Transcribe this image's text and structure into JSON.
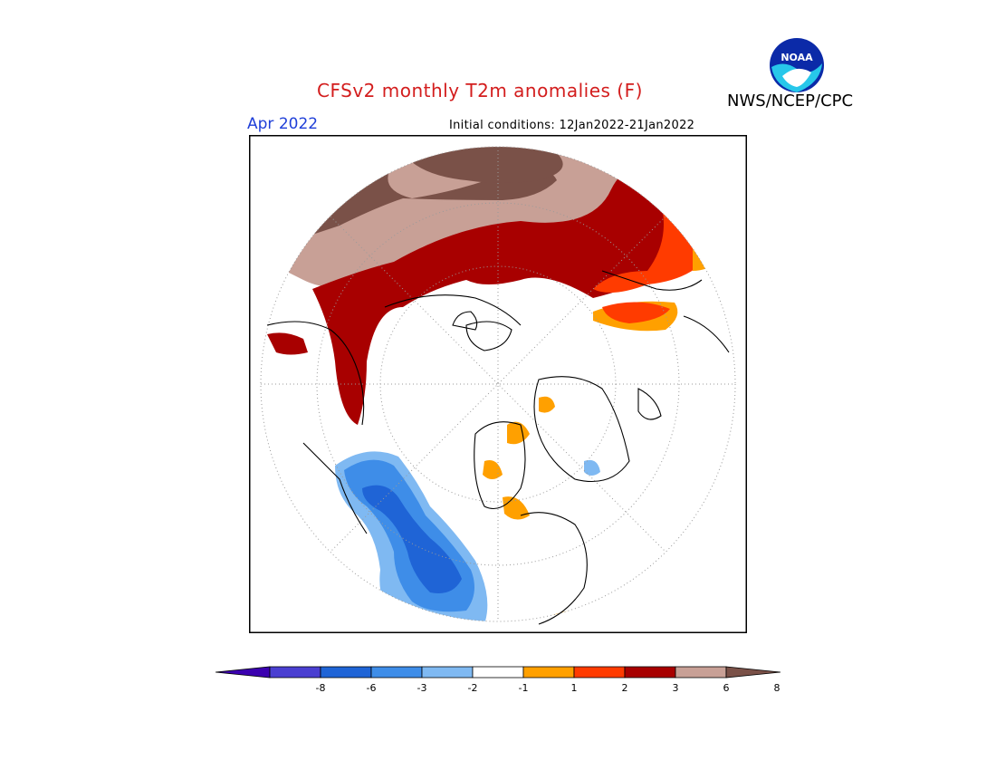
{
  "header": {
    "title": "CFSv2 monthly T2m anomalies (F)",
    "organization": "NWS/NCEP/CPC",
    "logo_text": "NOAA",
    "month": "Apr 2022",
    "initial_conditions": "Initial conditions: 12Jan2022-21Jan2022"
  },
  "colorbar": {
    "ticks": [
      "-8",
      "-6",
      "-3",
      "-2",
      "-1",
      "1",
      "2",
      "3",
      "6",
      "8"
    ],
    "colors": [
      "#3b00b0",
      "#4a3fd1",
      "#1f64d6",
      "#3e8de8",
      "#7fb9f2",
      "#ffffff",
      "#ffa000",
      "#ff3b00",
      "#a80000",
      "#c8a096",
      "#7a5148"
    ]
  },
  "palette": {
    "title_color": "#d31d1d",
    "month_color": "#1f3fd8",
    "brown": "#7a5148",
    "tan": "#c8a096",
    "darkred": "#a80000",
    "red": "#ff3b00",
    "orange": "#ffa000",
    "lightblue": "#7fb9f2",
    "midblue": "#3e8de8",
    "blue": "#1f64d6"
  }
}
